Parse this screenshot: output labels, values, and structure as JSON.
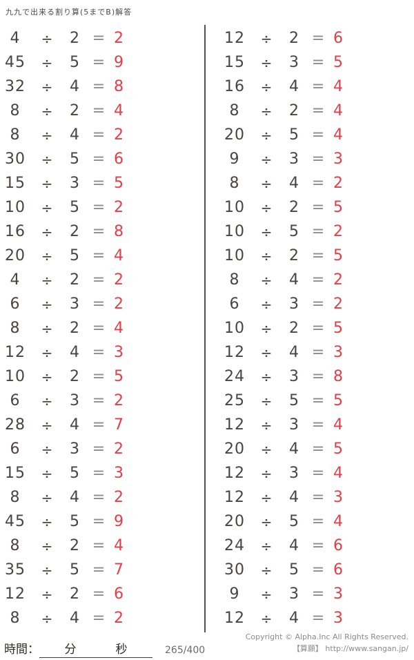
{
  "title": "九九で出来る割り算(5までB)解答",
  "operator": "÷",
  "equals": "=",
  "colors": {
    "digit": "#4a4440",
    "answer_red": "#e93c46",
    "equals_gray": "#8c8c8c",
    "divider": "#57504d"
  },
  "left_problems": [
    {
      "d": "4",
      "v": "2",
      "a": "2"
    },
    {
      "d": "45",
      "v": "5",
      "a": "9"
    },
    {
      "d": "32",
      "v": "4",
      "a": "8"
    },
    {
      "d": "8",
      "v": "2",
      "a": "4"
    },
    {
      "d": "8",
      "v": "4",
      "a": "2"
    },
    {
      "d": "30",
      "v": "5",
      "a": "6"
    },
    {
      "d": "15",
      "v": "3",
      "a": "5"
    },
    {
      "d": "10",
      "v": "5",
      "a": "2"
    },
    {
      "d": "16",
      "v": "2",
      "a": "8"
    },
    {
      "d": "20",
      "v": "5",
      "a": "4"
    },
    {
      "d": "4",
      "v": "2",
      "a": "2"
    },
    {
      "d": "6",
      "v": "3",
      "a": "2"
    },
    {
      "d": "8",
      "v": "2",
      "a": "4"
    },
    {
      "d": "12",
      "v": "4",
      "a": "3"
    },
    {
      "d": "10",
      "v": "2",
      "a": "5"
    },
    {
      "d": "6",
      "v": "3",
      "a": "2"
    },
    {
      "d": "28",
      "v": "4",
      "a": "7"
    },
    {
      "d": "6",
      "v": "3",
      "a": "2"
    },
    {
      "d": "15",
      "v": "5",
      "a": "3"
    },
    {
      "d": "8",
      "v": "4",
      "a": "2"
    },
    {
      "d": "45",
      "v": "5",
      "a": "9"
    },
    {
      "d": "8",
      "v": "2",
      "a": "4"
    },
    {
      "d": "35",
      "v": "5",
      "a": "7"
    },
    {
      "d": "12",
      "v": "2",
      "a": "6"
    },
    {
      "d": "8",
      "v": "4",
      "a": "2"
    }
  ],
  "right_problems": [
    {
      "d": "12",
      "v": "2",
      "a": "6"
    },
    {
      "d": "15",
      "v": "3",
      "a": "5"
    },
    {
      "d": "16",
      "v": "4",
      "a": "4"
    },
    {
      "d": "8",
      "v": "2",
      "a": "4"
    },
    {
      "d": "20",
      "v": "5",
      "a": "4"
    },
    {
      "d": "9",
      "v": "3",
      "a": "3"
    },
    {
      "d": "8",
      "v": "4",
      "a": "2"
    },
    {
      "d": "10",
      "v": "2",
      "a": "5"
    },
    {
      "d": "10",
      "v": "5",
      "a": "2"
    },
    {
      "d": "10",
      "v": "2",
      "a": "5"
    },
    {
      "d": "8",
      "v": "4",
      "a": "2"
    },
    {
      "d": "6",
      "v": "3",
      "a": "2"
    },
    {
      "d": "10",
      "v": "2",
      "a": "5"
    },
    {
      "d": "12",
      "v": "4",
      "a": "3"
    },
    {
      "d": "24",
      "v": "3",
      "a": "8"
    },
    {
      "d": "25",
      "v": "5",
      "a": "5"
    },
    {
      "d": "12",
      "v": "3",
      "a": "4"
    },
    {
      "d": "20",
      "v": "4",
      "a": "5"
    },
    {
      "d": "12",
      "v": "3",
      "a": "4"
    },
    {
      "d": "12",
      "v": "4",
      "a": "3"
    },
    {
      "d": "20",
      "v": "5",
      "a": "4"
    },
    {
      "d": "24",
      "v": "4",
      "a": "6"
    },
    {
      "d": "30",
      "v": "5",
      "a": "6"
    },
    {
      "d": "9",
      "v": "3",
      "a": "3"
    },
    {
      "d": "12",
      "v": "4",
      "a": "3"
    }
  ],
  "footer": {
    "time_label": "時間：",
    "minutes_label": "分",
    "seconds_label": "秒",
    "page_number": "265/400",
    "copyright_line1": "Copyright © Alpha.Inc All Rights Reserved.",
    "copyright_line2": "【算願】 http://www.sangan.jp/"
  }
}
